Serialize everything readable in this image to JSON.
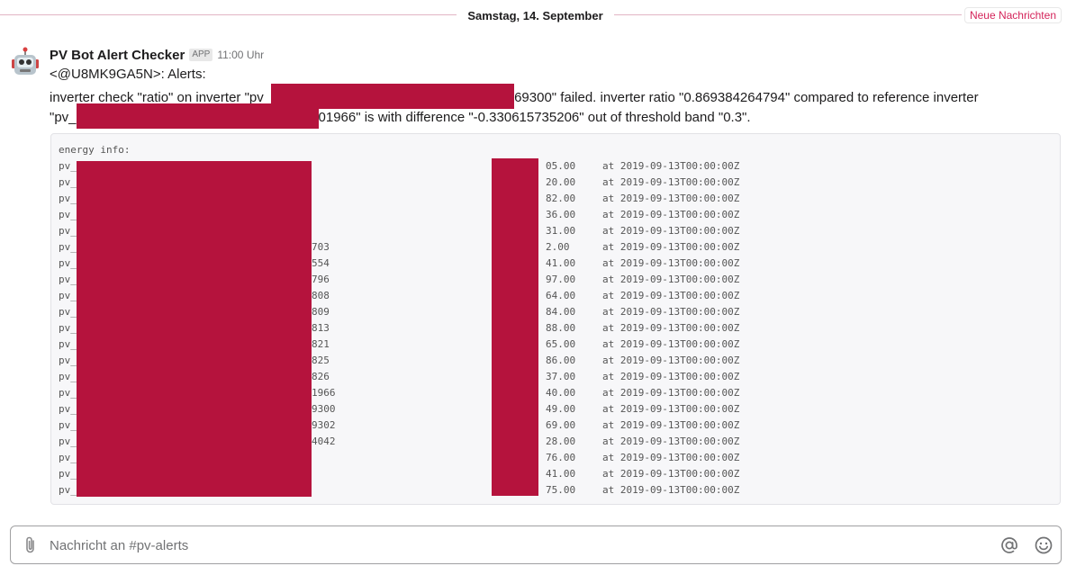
{
  "date_divider": {
    "date": "Samstag, 14. September",
    "new_messages": "Neue Nachrichten"
  },
  "message": {
    "sender": "PV Bot Alert Checker",
    "badge": "APP",
    "time": "11:00 Uhr",
    "line1": "<@U8MK9GA5N>: Alerts:",
    "line2_start": "inverter check \"ratio\" on inverter \"pv_",
    "line2_end": "69300\" failed. inverter ratio \"0.869384264794\" compared to reference inverter",
    "line3_start": "\"pv_",
    "line3_end": "01966\" is with difference \"-0.330615735206\" out of threshold band \"0.3\"."
  },
  "code_block": {
    "header": "energy info:",
    "rows": [
      {
        "prefix": "pv_",
        "mid": "",
        "value": "05.00",
        "date": "at 2019-09-13T00:00:00Z"
      },
      {
        "prefix": "pv_",
        "mid": "",
        "value": "20.00",
        "date": "at 2019-09-13T00:00:00Z"
      },
      {
        "prefix": "pv_",
        "mid": "",
        "value": "82.00",
        "date": "at 2019-09-13T00:00:00Z"
      },
      {
        "prefix": "pv_",
        "mid": "",
        "value": "36.00",
        "date": "at 2019-09-13T00:00:00Z"
      },
      {
        "prefix": "pv_",
        "mid": "",
        "value": "31.00",
        "date": "at 2019-09-13T00:00:00Z"
      },
      {
        "prefix": "pv_",
        "mid": "703",
        "value": "2.00",
        "date": "at 2019-09-13T00:00:00Z"
      },
      {
        "prefix": "pv_",
        "mid": "554",
        "value": "41.00",
        "date": "at 2019-09-13T00:00:00Z"
      },
      {
        "prefix": "pv_",
        "mid": "796",
        "value": "97.00",
        "date": "at 2019-09-13T00:00:00Z"
      },
      {
        "prefix": "pv_",
        "mid": "808",
        "value": "64.00",
        "date": "at 2019-09-13T00:00:00Z"
      },
      {
        "prefix": "pv_",
        "mid": "809",
        "value": "84.00",
        "date": "at 2019-09-13T00:00:00Z"
      },
      {
        "prefix": "pv_",
        "mid": "813",
        "value": "88.00",
        "date": "at 2019-09-13T00:00:00Z"
      },
      {
        "prefix": "pv_",
        "mid": "821",
        "value": "65.00",
        "date": "at 2019-09-13T00:00:00Z"
      },
      {
        "prefix": "pv_",
        "mid": "825",
        "value": "86.00",
        "date": "at 2019-09-13T00:00:00Z"
      },
      {
        "prefix": "pv_",
        "mid": "826",
        "value": "37.00",
        "date": "at 2019-09-13T00:00:00Z"
      },
      {
        "prefix": "pv_",
        "mid": "1966",
        "value": "40.00",
        "date": "at 2019-09-13T00:00:00Z"
      },
      {
        "prefix": "pv_",
        "mid": "9300",
        "value": "49.00",
        "date": "at 2019-09-13T00:00:00Z"
      },
      {
        "prefix": "pv_",
        "mid": "9302",
        "value": "69.00",
        "date": "at 2019-09-13T00:00:00Z"
      },
      {
        "prefix": "pv_",
        "mid": "4042",
        "value": "28.00",
        "date": "at 2019-09-13T00:00:00Z"
      },
      {
        "prefix": "pv_",
        "mid": "",
        "value": "76.00",
        "date": "at 2019-09-13T00:00:00Z"
      },
      {
        "prefix": "pv_",
        "mid": "",
        "value": "41.00",
        "date": "at 2019-09-13T00:00:00Z"
      },
      {
        "prefix": "pv_",
        "mid": "",
        "value": "75.00",
        "date": "at 2019-09-13T00:00:00Z"
      }
    ]
  },
  "composer": {
    "placeholder": "Nachricht an #pv-alerts"
  },
  "icons": {
    "avatar": "robot-icon",
    "attach": "paperclip-icon",
    "mention": "at-sign-icon",
    "emoji": "smiley-icon"
  },
  "colors": {
    "redaction": "#b5133d",
    "accent": "#d4245a"
  }
}
